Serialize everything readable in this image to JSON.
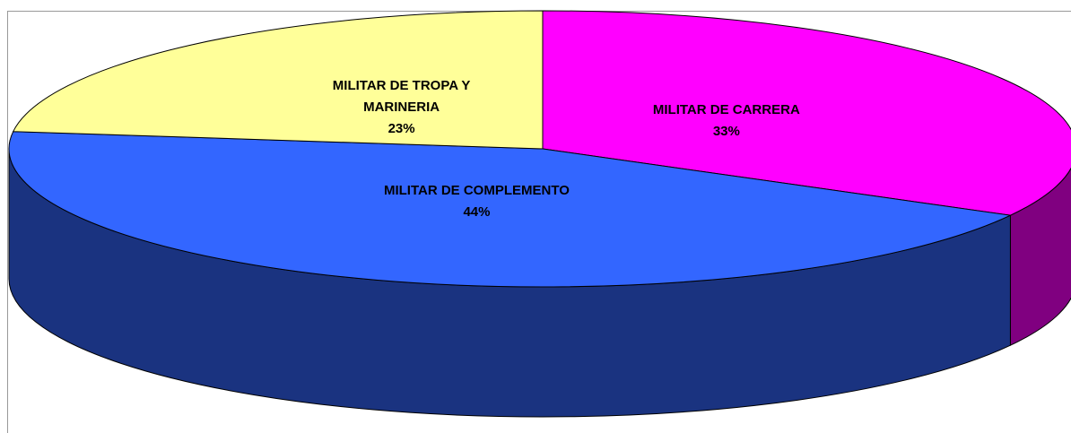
{
  "chart_data": {
    "type": "pie3d",
    "categories": [
      "MILITAR DE CARRERA",
      "MILITAR DE COMPLEMENTO",
      "MILITAR DE TROPA Y MARINERIA"
    ],
    "values": [
      33,
      44,
      23
    ],
    "value_labels": [
      "33%",
      "44%",
      "23%"
    ],
    "colors": [
      "#ff00ff",
      "#3366ff",
      "#ffff99"
    ],
    "side_colors": [
      "#800080",
      "#1a3380",
      "#b3b36b"
    ]
  }
}
